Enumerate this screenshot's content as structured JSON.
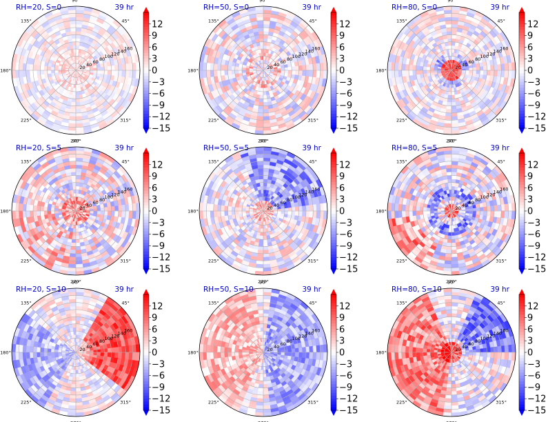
{
  "figure": {
    "time_label": "39 hr",
    "colors": {
      "negative": "#0000ff",
      "neutral": "#ffffff",
      "positive": "#ff0000",
      "title": "#0000cc",
      "grid": "#b0b0b0"
    }
  },
  "polar_axes": {
    "angle_ticks": [
      "0°",
      "45°",
      "90°",
      "135°",
      "180°",
      "225°",
      "270°",
      "315°"
    ],
    "angle_tick_degrees": [
      0,
      45,
      90,
      135,
      180,
      225,
      270,
      315
    ],
    "radial_ticks": [
      "20",
      "40",
      "60",
      "80",
      "100",
      "120",
      "140",
      "160"
    ],
    "radial_tick_values": [
      20,
      40,
      60,
      80,
      100,
      120,
      140,
      160
    ],
    "rmax": 180
  },
  "colorbar": {
    "ticks": [
      "12",
      "9",
      "6",
      "3",
      "0",
      "−3",
      "−6",
      "−9",
      "−12",
      "−15"
    ],
    "tick_values": [
      12,
      9,
      6,
      3,
      0,
      -3,
      -6,
      -9,
      -12,
      -15
    ],
    "range": [
      -15,
      15
    ],
    "extend": "both"
  },
  "chart_data": [
    {
      "type": "heatmap",
      "projection": "polar",
      "title": "RH=20, S=0",
      "time": "39 hr",
      "rh": 20,
      "s": 0,
      "vmin": -15,
      "vmax": 15,
      "pattern": "weak mixed ±3, slightly positive near center"
    },
    {
      "type": "heatmap",
      "projection": "polar",
      "title": "RH=50, S=0",
      "time": "39 hr",
      "rh": 50,
      "s": 0,
      "vmin": -15,
      "vmax": 15,
      "pattern": "mixed ±6, red ring near r≈40"
    },
    {
      "type": "heatmap",
      "projection": "polar",
      "title": "RH=80, S=0",
      "time": "39 hr",
      "rh": 80,
      "s": 0,
      "vmin": -15,
      "vmax": 15,
      "pattern": "strong red core, blue ring near r≈40"
    },
    {
      "type": "heatmap",
      "projection": "polar",
      "title": "RH=20, S=5",
      "time": "39 hr",
      "rh": 20,
      "s": 5,
      "vmin": -15,
      "vmax": 15,
      "pattern": "positive core, blue patches, mixed outer"
    },
    {
      "type": "heatmap",
      "projection": "polar",
      "title": "RH=50, S=5",
      "time": "39 hr",
      "rh": 50,
      "s": 5,
      "vmin": -15,
      "vmax": 15,
      "pattern": "blue in upper-right, red core"
    },
    {
      "type": "heatmap",
      "projection": "polar",
      "title": "RH=80, S=5",
      "time": "39 hr",
      "rh": 80,
      "s": 5,
      "vmin": -15,
      "vmax": 15,
      "pattern": "blue ring, red core, red lower-left"
    },
    {
      "type": "heatmap",
      "projection": "polar",
      "title": "RH=20, S=10",
      "time": "39 hr",
      "rh": 20,
      "s": 10,
      "vmin": -15,
      "vmax": 15,
      "pattern": "strong red right sector, blue left"
    },
    {
      "type": "heatmap",
      "projection": "polar",
      "title": "RH=50, S=10",
      "time": "39 hr",
      "rh": 50,
      "s": 10,
      "vmin": -15,
      "vmax": 15,
      "pattern": "red left, blue right half"
    },
    {
      "type": "heatmap",
      "projection": "polar",
      "title": "RH=80, S=10",
      "time": "39 hr",
      "rh": 80,
      "s": 10,
      "vmin": -15,
      "vmax": 15,
      "pattern": "red left and core, blue upper right"
    }
  ]
}
